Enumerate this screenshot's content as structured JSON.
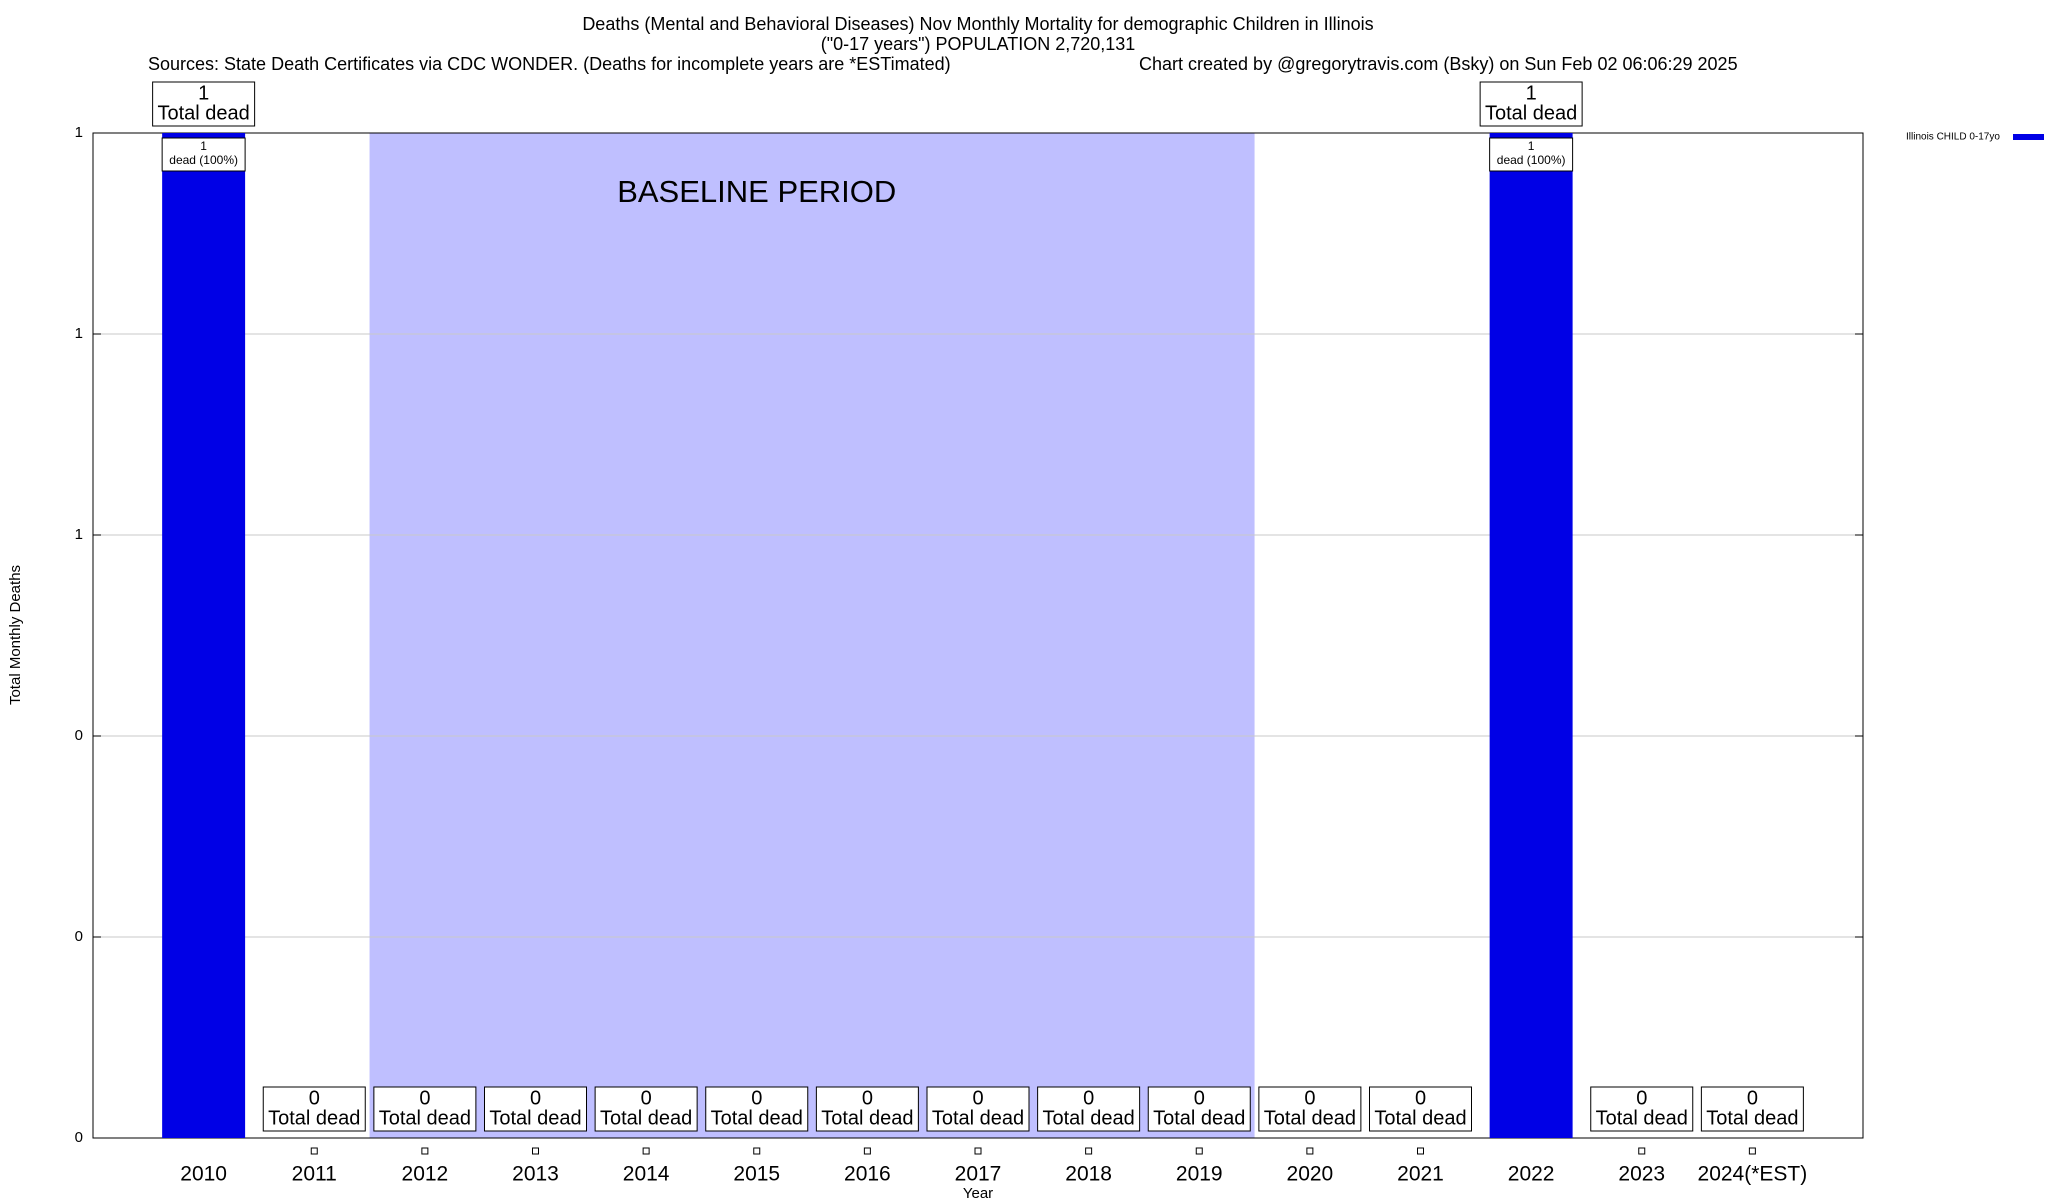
{
  "chart_data": {
    "type": "bar",
    "title": "Deaths (Mental and Behavioral Diseases) Nov Monthly Mortality for demographic Children in Illinois",
    "subtitle": "(\"0-17 years\") POPULATION 2,720,131",
    "sources": "Sources: State Death Certificates via CDC WONDER. (Deaths for incomplete years are *ESTimated)",
    "credit": "Chart created by @gregorytravis.com (Bsky) on Sun Feb 02 06:06:29 2025",
    "x_label": "Year",
    "y_label": "Total Monthly Deaths",
    "categories": [
      "2010",
      "2011",
      "2012",
      "2013",
      "2014",
      "2015",
      "2016",
      "2017",
      "2018",
      "2019",
      "2020",
      "2021",
      "2022",
      "2023",
      "2024(*EST)"
    ],
    "series": [
      {
        "name": "Illinois CHILD 0-17yo",
        "color": "#0000e6",
        "values": [
          1,
          0,
          0,
          0,
          0,
          0,
          0,
          0,
          0,
          0,
          0,
          0,
          1,
          0,
          0
        ]
      }
    ],
    "total_label": "Total dead",
    "inner_labels": [
      "dead (100%)",
      null,
      null,
      null,
      null,
      null,
      null,
      null,
      null,
      null,
      null,
      null,
      "dead (100%)",
      null,
      null
    ],
    "baseline": {
      "label": "BASELINE PERIOD",
      "start": "2012",
      "end": "2019",
      "color": "#bfbfff"
    },
    "ylim": [
      0,
      1
    ],
    "yticks": [
      0,
      {
        "value": 0.2,
        "label": "0"
      },
      {
        "value": 0.4,
        "label": "0"
      },
      {
        "value": 0.6,
        "label": "1"
      },
      {
        "value": 0.8,
        "label": "1"
      },
      1
    ],
    "grid": true,
    "legend": "right"
  }
}
